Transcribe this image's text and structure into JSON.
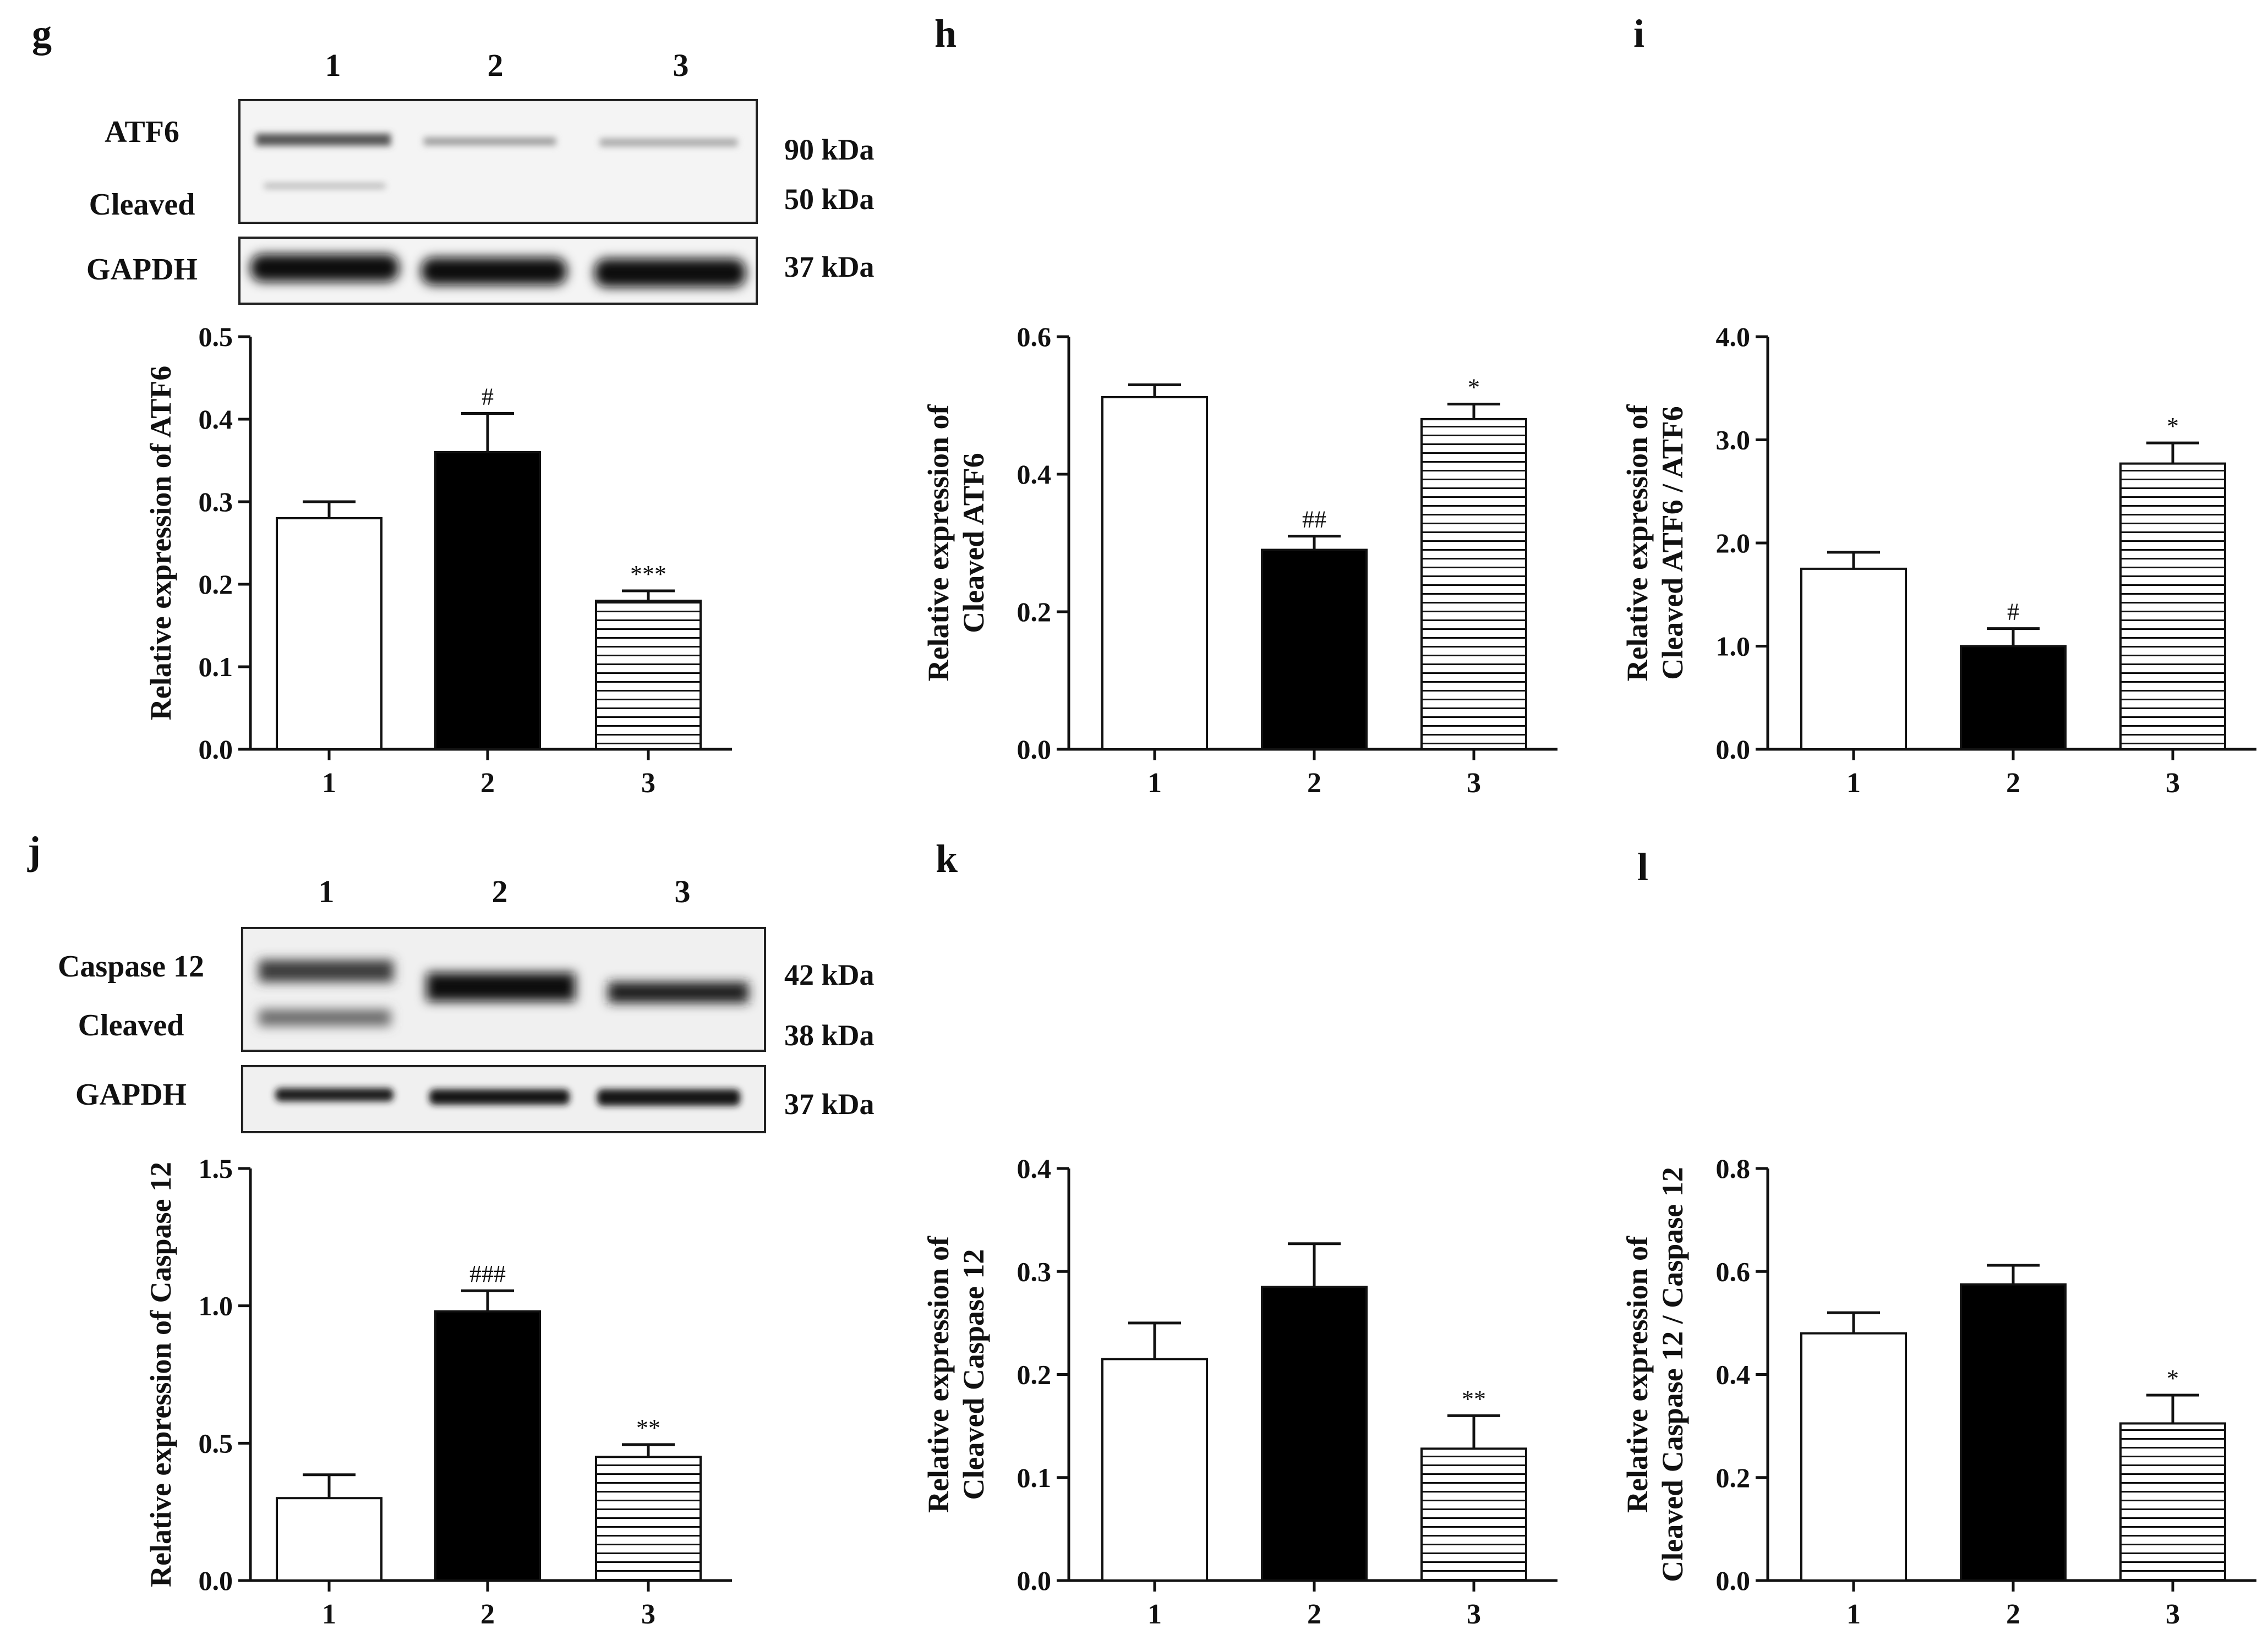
{
  "figure": {
    "colors": {
      "ink": "#111111",
      "bar_control": "#ffffff",
      "bar_model": "#000000",
      "hatch": "#111111"
    }
  },
  "blots": [
    {
      "id": "g",
      "lanes": [
        "1",
        "2",
        "3"
      ],
      "labels": [
        "ATF6",
        "Cleaved",
        "GAPDH"
      ],
      "markers": [
        "90 kDa",
        "50 kDa",
        "37 kDa"
      ]
    },
    {
      "id": "j",
      "lanes": [
        "1",
        "2",
        "3"
      ],
      "labels": [
        "Caspase 12",
        "Cleaved",
        "GAPDH"
      ],
      "markers": [
        "42 kDa",
        "38 kDa",
        "37 kDa"
      ]
    }
  ],
  "chart_data": [
    {
      "panel": "g",
      "type": "bar",
      "ylabel_lines": [
        "Relative expression of ATF6"
      ],
      "categories": [
        "1",
        "2",
        "3"
      ],
      "values": [
        0.28,
        0.36,
        0.18
      ],
      "errors": [
        0.02,
        0.047,
        0.012
      ],
      "annotations": [
        "",
        "#",
        "***"
      ],
      "ylim": [
        0,
        0.5
      ],
      "ticks": [
        0.0,
        0.1,
        0.2,
        0.3,
        0.4,
        0.5
      ],
      "tick_labels": [
        "0.0",
        "0.1",
        "0.2",
        "0.3",
        "0.4",
        "0.5"
      ]
    },
    {
      "panel": "h",
      "type": "bar",
      "ylabel_lines": [
        "Relative expression of",
        "Cleaved ATF6"
      ],
      "categories": [
        "1",
        "2",
        "3"
      ],
      "values": [
        0.512,
        0.29,
        0.48
      ],
      "errors": [
        0.018,
        0.02,
        0.022
      ],
      "annotations": [
        "",
        "##",
        "*"
      ],
      "ylim": [
        0,
        0.6
      ],
      "ticks": [
        0.0,
        0.2,
        0.4,
        0.6
      ],
      "tick_labels": [
        "0.0",
        "0.2",
        "0.4",
        "0.6"
      ]
    },
    {
      "panel": "i",
      "type": "bar",
      "ylabel_lines": [
        "Relative expression of",
        "Cleaved ATF6 / ATF6"
      ],
      "categories": [
        "1",
        "2",
        "3"
      ],
      "values": [
        1.75,
        1.0,
        2.77
      ],
      "errors": [
        0.16,
        0.17,
        0.2
      ],
      "annotations": [
        "",
        "#",
        "*"
      ],
      "ylim": [
        0,
        4.0
      ],
      "ticks": [
        0.0,
        1.0,
        2.0,
        3.0,
        4.0
      ],
      "tick_labels": [
        "0.0",
        "1.0",
        "2.0",
        "3.0",
        "4.0"
      ]
    },
    {
      "panel": "j",
      "type": "bar",
      "ylabel_lines": [
        "Relative expression of Caspase 12"
      ],
      "categories": [
        "1",
        "2",
        "3"
      ],
      "values": [
        0.3,
        0.98,
        0.45
      ],
      "errors": [
        0.085,
        0.075,
        0.045
      ],
      "annotations": [
        "",
        "###",
        "**"
      ],
      "ylim": [
        0,
        1.5
      ],
      "ticks": [
        0.0,
        0.5,
        1.0,
        1.5
      ],
      "tick_labels": [
        "0.0",
        "0.5",
        "1.0",
        "1.5"
      ]
    },
    {
      "panel": "k",
      "type": "bar",
      "ylabel_lines": [
        "Relative expression of",
        "Cleaved Caspase 12"
      ],
      "categories": [
        "1",
        "2",
        "3"
      ],
      "values": [
        0.215,
        0.285,
        0.128
      ],
      "errors": [
        0.035,
        0.042,
        0.032
      ],
      "annotations": [
        "",
        "",
        "**"
      ],
      "ylim": [
        0,
        0.4
      ],
      "ticks": [
        0.0,
        0.1,
        0.2,
        0.3,
        0.4
      ],
      "tick_labels": [
        "0.0",
        "0.1",
        "0.2",
        "0.3",
        "0.4"
      ]
    },
    {
      "panel": "l",
      "type": "bar",
      "ylabel_lines": [
        "Relative expression of",
        "Cleaved Caspase 12 / Caspase 12"
      ],
      "categories": [
        "1",
        "2",
        "3"
      ],
      "values": [
        0.48,
        0.575,
        0.305
      ],
      "errors": [
        0.04,
        0.037,
        0.055
      ],
      "annotations": [
        "",
        "",
        "*"
      ],
      "ylim": [
        0,
        0.8
      ],
      "ticks": [
        0.0,
        0.2,
        0.4,
        0.6,
        0.8
      ],
      "tick_labels": [
        "0.0",
        "0.2",
        "0.4",
        "0.6",
        "0.8"
      ]
    }
  ]
}
